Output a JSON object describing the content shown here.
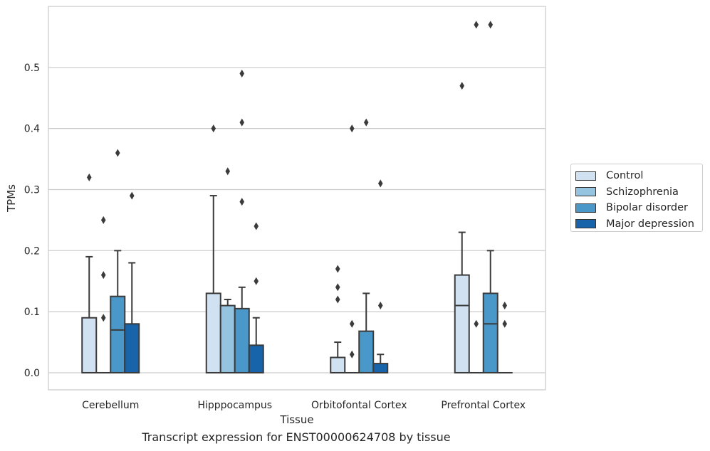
{
  "chart_data": {
    "type": "box",
    "title": "",
    "xlabel": "Tissue",
    "ylabel": "TPMs",
    "caption": "Transcript expression for ENST00000624708 by tissue",
    "categories": [
      "Cerebellum",
      "Hipppocampus",
      "Orbitofontal Cortex",
      "Prefrontal Cortex"
    ],
    "ylim": [
      -0.028,
      0.6
    ],
    "yticks": [
      0.0,
      0.1,
      0.2,
      0.3,
      0.4,
      0.5
    ],
    "ytick_labels": [
      "0.0",
      "0.1",
      "0.2",
      "0.3",
      "0.4",
      "0.5"
    ],
    "grid": true,
    "legend_position": "right",
    "series": [
      {
        "name": "Control",
        "color": "#d0e1f2",
        "boxes": [
          {
            "q1": 0.0,
            "median": 0.0,
            "q3": 0.09,
            "whisker_low": 0.0,
            "whisker_high": 0.19,
            "outliers": [
              0.32
            ]
          },
          {
            "q1": 0.0,
            "median": 0.0,
            "q3": 0.13,
            "whisker_low": 0.0,
            "whisker_high": 0.29,
            "outliers": [
              0.4
            ]
          },
          {
            "q1": 0.0,
            "median": 0.0,
            "q3": 0.025,
            "whisker_low": 0.0,
            "whisker_high": 0.05,
            "outliers": [
              0.12,
              0.14,
              0.17
            ]
          },
          {
            "q1": 0.0,
            "median": 0.11,
            "q3": 0.16,
            "whisker_low": 0.0,
            "whisker_high": 0.23,
            "outliers": [
              0.47
            ]
          }
        ]
      },
      {
        "name": "Schizophrenia",
        "color": "#94c4df",
        "boxes": [
          {
            "q1": 0.0,
            "median": 0.0,
            "q3": 0.0,
            "whisker_low": 0.0,
            "whisker_high": 0.0,
            "outliers": [
              0.09,
              0.16,
              0.25
            ]
          },
          {
            "q1": 0.0,
            "median": 0.0,
            "q3": 0.11,
            "whisker_low": 0.0,
            "whisker_high": 0.12,
            "outliers": [
              0.33
            ]
          },
          {
            "q1": 0.0,
            "median": 0.0,
            "q3": 0.0,
            "whisker_low": 0.0,
            "whisker_high": 0.0,
            "outliers": [
              0.03,
              0.08,
              0.4
            ]
          },
          {
            "q1": 0.0,
            "median": 0.0,
            "q3": 0.0,
            "whisker_low": 0.0,
            "whisker_high": 0.0,
            "outliers": [
              0.08,
              0.57
            ]
          }
        ]
      },
      {
        "name": "Bipolar disorder",
        "color": "#4a98c9",
        "boxes": [
          {
            "q1": 0.0,
            "median": 0.07,
            "q3": 0.125,
            "whisker_low": 0.0,
            "whisker_high": 0.2,
            "outliers": [
              0.36
            ]
          },
          {
            "q1": 0.0,
            "median": 0.0,
            "q3": 0.105,
            "whisker_low": 0.0,
            "whisker_high": 0.14,
            "outliers": [
              0.28,
              0.41,
              0.49
            ]
          },
          {
            "q1": 0.0,
            "median": 0.0,
            "q3": 0.068,
            "whisker_low": 0.0,
            "whisker_high": 0.13,
            "outliers": [
              0.41
            ]
          },
          {
            "q1": 0.0,
            "median": 0.08,
            "q3": 0.13,
            "whisker_low": 0.0,
            "whisker_high": 0.2,
            "outliers": [
              0.57
            ]
          }
        ]
      },
      {
        "name": "Major depression",
        "color": "#1764ab",
        "boxes": [
          {
            "q1": 0.0,
            "median": 0.0,
            "q3": 0.08,
            "whisker_low": 0.0,
            "whisker_high": 0.18,
            "outliers": [
              0.29
            ]
          },
          {
            "q1": 0.0,
            "median": 0.0,
            "q3": 0.045,
            "whisker_low": 0.0,
            "whisker_high": 0.09,
            "outliers": [
              0.15,
              0.24
            ]
          },
          {
            "q1": 0.0,
            "median": 0.0,
            "q3": 0.015,
            "whisker_low": 0.0,
            "whisker_high": 0.03,
            "outliers": [
              0.11,
              0.31
            ]
          },
          {
            "q1": 0.0,
            "median": 0.0,
            "q3": 0.0,
            "whisker_low": 0.0,
            "whisker_high": 0.0,
            "outliers": [
              0.08,
              0.11
            ]
          }
        ]
      }
    ]
  }
}
